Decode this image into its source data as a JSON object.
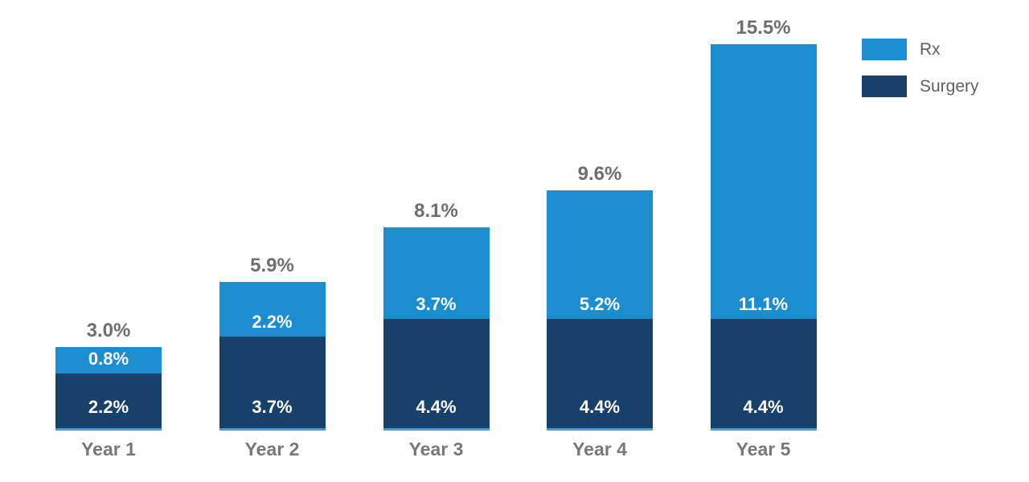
{
  "chart_data": {
    "type": "bar",
    "variant": "stacked-column",
    "title": "",
    "value_unit": "%",
    "categories": [
      "Year 1",
      "Year 2",
      "Year 3",
      "Year 4",
      "Year 5"
    ],
    "series": [
      {
        "name": "Rx",
        "color": "#1C8DCE",
        "values": [
          0.8,
          2.2,
          3.7,
          5.2,
          11.1
        ],
        "labels": [
          "0.8%",
          "2.2%",
          "3.7%",
          "5.2%",
          "11.1%"
        ]
      },
      {
        "name": "Surgery",
        "color": "#17406A",
        "values": [
          2.2,
          3.7,
          4.4,
          4.4,
          4.4
        ],
        "labels": [
          "2.2%",
          "3.7%",
          "4.4%",
          "4.4%",
          "4.4%"
        ]
      }
    ],
    "totals": [
      3.0,
      5.9,
      8.1,
      9.6,
      15.5
    ],
    "total_labels": [
      "3.0%",
      "5.9%",
      "8.1%",
      "9.6%",
      "15.5%"
    ],
    "legend": {
      "position": "top-right",
      "entries": [
        {
          "label": "Rx",
          "color": "#1C8DCE"
        },
        {
          "label": "Surgery",
          "color": "#17406A"
        }
      ]
    },
    "axes": {
      "x_axis_visible": false,
      "y_axis_visible": false,
      "gridlines": false
    },
    "ylim": [
      0,
      16
    ]
  },
  "style": {
    "background": "#FFFFFF",
    "total_label_color": "#6D6E71",
    "category_label_color": "#77787B",
    "segment_label_color": "#FFFFFF",
    "legend_text_color": "#5E6063",
    "baseline_accent_color": "#3D9FD8"
  }
}
